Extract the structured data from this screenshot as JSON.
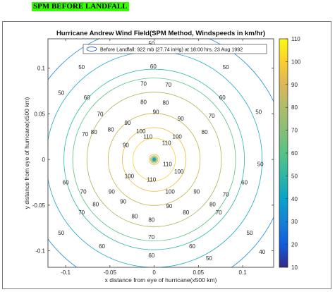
{
  "page_label": "SPM BEFORE LANDFALL",
  "chart_data": {
    "type": "contour",
    "title": "Hurricane Andrew Wind Field(SPM Method, Windspeeds in km/hr)",
    "xlabel": "x distance from eye of hurricane(x500 km)",
    "ylabel": "y distance from eye of hurricane(x500 km)",
    "xlim": [
      -0.12,
      0.135
    ],
    "ylim": [
      -0.118,
      0.132
    ],
    "x_ticks": [
      -0.1,
      -0.05,
      0,
      0.05,
      0.1
    ],
    "x_tick_labels": [
      "-0.1",
      "-0.05",
      "0",
      "0.05",
      "0.1"
    ],
    "y_ticks": [
      0.1,
      0.05,
      0,
      -0.05,
      -0.1
    ],
    "y_tick_labels": [
      "0.1",
      "0.05",
      "0",
      "-0.05",
      "-0.1"
    ],
    "legend": {
      "entry": "Before Landfall: 922 mb (27.74 inHg) at 18:00 hrs, 23 Aug 1992",
      "location": "top"
    },
    "colorbar": {
      "min": 10,
      "max": 110,
      "ticks": [
        10,
        20,
        30,
        40,
        50,
        60,
        70,
        80,
        90,
        100,
        110
      ],
      "tick_labels": [
        "10",
        "20",
        "30",
        "40",
        "50",
        "60",
        "70",
        "80",
        "90",
        "100",
        "110"
      ],
      "colormap": "parula"
    },
    "levels": [
      {
        "value": 110,
        "radius": 0.024,
        "color": "#f7d03c"
      },
      {
        "value": 100,
        "radius": 0.036,
        "color": "#e9ba3c"
      },
      {
        "value": 90,
        "radius": 0.052,
        "color": "#c3b64c"
      },
      {
        "value": 80,
        "radius": 0.076,
        "color": "#9dba5c"
      },
      {
        "value": 70,
        "radius": 0.092,
        "color": "#58c284"
      },
      {
        "value": 60,
        "radius": 0.102,
        "color": "#2fb8a8"
      },
      {
        "value": 50,
        "radius": 0.122,
        "color": "#1ea9c4"
      },
      {
        "value": 40,
        "radius": 0.15,
        "color": "#1d8bd8"
      }
    ],
    "inner_levels": [
      {
        "value": 100,
        "radius": 0.0058
      },
      {
        "value": 90,
        "radius": 0.0042
      },
      {
        "value": 80,
        "radius": 0.0032
      },
      {
        "value": 70,
        "radius": 0.0024
      },
      {
        "value": 60,
        "radius": 0.0018
      },
      {
        "value": 50,
        "radius": 0.0013
      },
      {
        "value": 40,
        "radius": 0.0009
      },
      {
        "value": 30,
        "radius": 0.0006
      }
    ],
    "contour_labels": [
      {
        "text": "50",
        "x": -0.003,
        "y": 0.127
      },
      {
        "text": "60",
        "x": -0.001,
        "y": 0.102
      },
      {
        "text": "70",
        "x": -0.012,
        "y": 0.083
      },
      {
        "text": "70",
        "x": 0.016,
        "y": 0.082
      },
      {
        "text": "80",
        "x": -0.012,
        "y": 0.063
      },
      {
        "text": "80",
        "x": 0.013,
        "y": 0.062
      },
      {
        "text": "90",
        "x": 0.002,
        "y": 0.052
      },
      {
        "text": "100",
        "x": -0.015,
        "y": 0.031
      },
      {
        "text": "110",
        "x": -0.007,
        "y": 0.025
      },
      {
        "text": "110",
        "x": 0.014,
        "y": 0.018
      },
      {
        "text": "100",
        "x": 0.026,
        "y": 0.025
      },
      {
        "text": "90",
        "x": 0.03,
        "y": 0.045
      },
      {
        "text": "90",
        "x": -0.03,
        "y": 0.04
      },
      {
        "text": "80",
        "x": 0.057,
        "y": 0.03
      },
      {
        "text": "70",
        "x": 0.065,
        "y": 0.048
      },
      {
        "text": "70",
        "x": -0.061,
        "y": 0.05
      },
      {
        "text": "80",
        "x": -0.049,
        "y": 0.033
      },
      {
        "text": "90",
        "x": -0.032,
        "y": 0.016
      },
      {
        "text": "80",
        "x": -0.068,
        "y": 0.03
      },
      {
        "text": "70",
        "x": -0.078,
        "y": 0.028
      },
      {
        "text": "60",
        "x": -0.076,
        "y": 0.068
      },
      {
        "text": "60",
        "x": 0.077,
        "y": 0.068
      },
      {
        "text": "50",
        "x": -0.082,
        "y": 0.101
      },
      {
        "text": "50",
        "x": 0.081,
        "y": 0.101
      },
      {
        "text": "50",
        "x": -0.105,
        "y": 0.073
      },
      {
        "text": "50",
        "x": 0.118,
        "y": 0.052
      },
      {
        "text": "60",
        "x": -0.1,
        "y": -0.025
      },
      {
        "text": "60",
        "x": 0.102,
        "y": -0.025
      },
      {
        "text": "70",
        "x": -0.08,
        "y": -0.035
      },
      {
        "text": "70",
        "x": 0.081,
        "y": -0.038
      },
      {
        "text": "80",
        "x": -0.066,
        "y": -0.049
      },
      {
        "text": "80",
        "x": 0.066,
        "y": -0.049
      },
      {
        "text": "90",
        "x": -0.048,
        "y": -0.035
      },
      {
        "text": "90",
        "x": 0.048,
        "y": -0.035
      },
      {
        "text": "100",
        "x": -0.028,
        "y": -0.018
      },
      {
        "text": "100",
        "x": 0.028,
        "y": -0.013
      },
      {
        "text": "110",
        "x": 0.015,
        "y": -0.005
      },
      {
        "text": "110",
        "x": -0.003,
        "y": -0.022
      },
      {
        "text": "100",
        "x": 0.018,
        "y": -0.035
      },
      {
        "text": "90",
        "x": -0.035,
        "y": -0.046
      },
      {
        "text": "90",
        "x": 0.017,
        "y": -0.051
      },
      {
        "text": "80",
        "x": -0.022,
        "y": -0.062
      },
      {
        "text": "80",
        "x": 0.036,
        "y": -0.058
      },
      {
        "text": "70",
        "x": -0.082,
        "y": -0.058
      },
      {
        "text": "70",
        "x": 0.073,
        "y": -0.058
      },
      {
        "text": "70",
        "x": -0.003,
        "y": -0.085
      },
      {
        "text": "80",
        "x": -0.003,
        "y": -0.066
      },
      {
        "text": "60",
        "x": -0.059,
        "y": -0.095
      },
      {
        "text": "60",
        "x": 0.043,
        "y": -0.095
      },
      {
        "text": "60",
        "x": -0.003,
        "y": -0.105
      },
      {
        "text": "50",
        "x": -0.105,
        "y": -0.08
      },
      {
        "text": "50",
        "x": 0.108,
        "y": -0.08
      },
      {
        "text": "50",
        "x": 0.062,
        "y": -0.108
      },
      {
        "text": "40",
        "x": 0.122,
        "y": -0.101
      },
      {
        "text": "50",
        "x": 0.12,
        "y": -0.005
      }
    ]
  }
}
